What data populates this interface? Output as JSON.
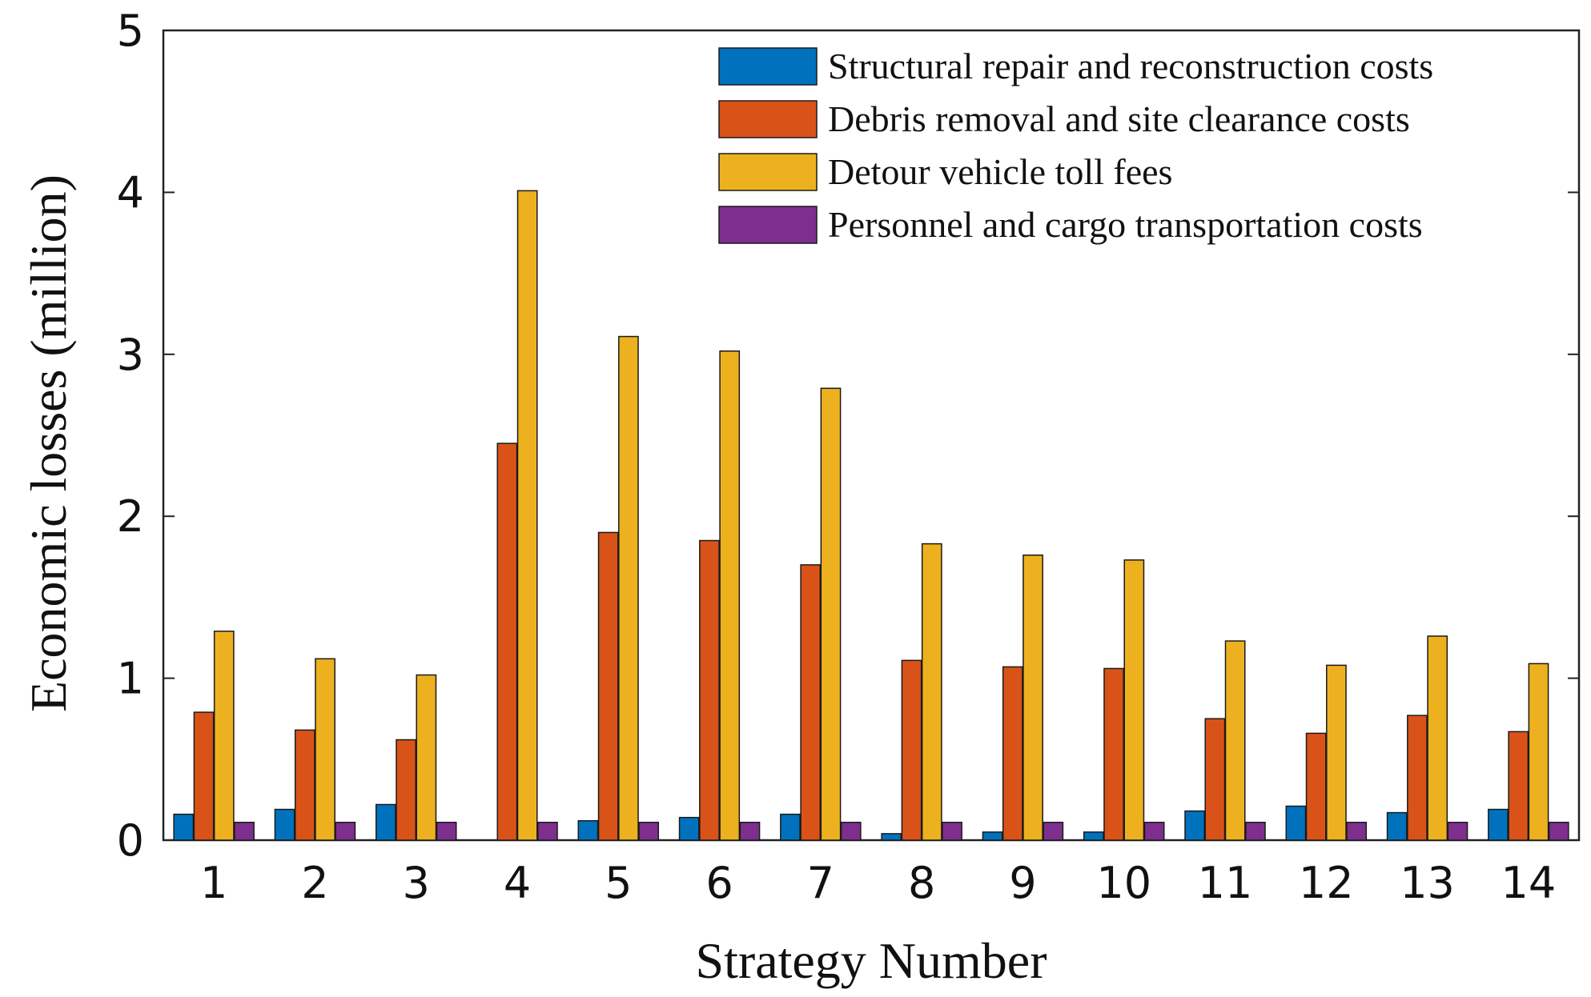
{
  "chart_data": {
    "type": "bar",
    "xlabel": "Strategy Number",
    "ylabel": "Economic losses (million)",
    "categories": [
      "1",
      "2",
      "3",
      "4",
      "5",
      "6",
      "7",
      "8",
      "9",
      "10",
      "11",
      "12",
      "13",
      "14"
    ],
    "ylim": [
      0,
      5
    ],
    "yticks": [
      "0",
      "1",
      "2",
      "3",
      "4",
      "5"
    ],
    "grid": false,
    "legend_position": "top-right",
    "series": [
      {
        "name": "Structural repair and reconstruction costs",
        "color": "#0072BD",
        "values": [
          0.16,
          0.19,
          0.22,
          0.0,
          0.12,
          0.14,
          0.16,
          0.04,
          0.05,
          0.05,
          0.18,
          0.21,
          0.17,
          0.19
        ]
      },
      {
        "name": "Debris removal and site clearance costs",
        "color": "#D95319",
        "values": [
          0.79,
          0.68,
          0.62,
          2.45,
          1.9,
          1.85,
          1.7,
          1.11,
          1.07,
          1.06,
          0.75,
          0.66,
          0.77,
          0.67
        ]
      },
      {
        "name": "Detour vehicle toll fees",
        "color": "#EDB120",
        "values": [
          1.29,
          1.12,
          1.02,
          4.01,
          3.11,
          3.02,
          2.79,
          1.83,
          1.76,
          1.73,
          1.23,
          1.08,
          1.26,
          1.09
        ]
      },
      {
        "name": "Personnel and cargo transportation costs",
        "color": "#7E2F8E",
        "values": [
          0.11,
          0.11,
          0.11,
          0.11,
          0.11,
          0.11,
          0.11,
          0.11,
          0.11,
          0.11,
          0.11,
          0.11,
          0.11,
          0.11
        ]
      }
    ]
  }
}
